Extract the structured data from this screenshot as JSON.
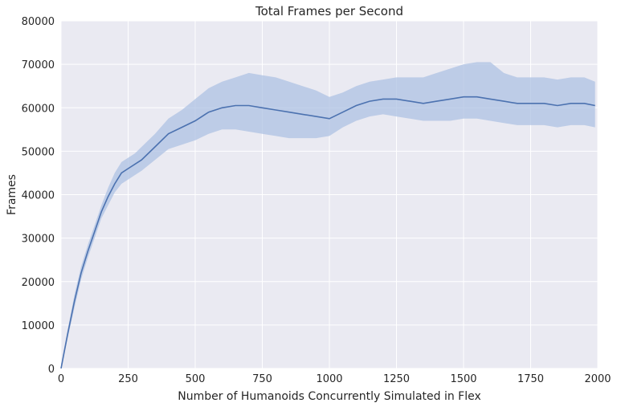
{
  "chart_data": {
    "type": "line",
    "title": "Total Frames per Second",
    "xlabel": "Number of Humanoids Concurrently Simulated in Flex",
    "ylabel": "Frames",
    "xlim": [
      0,
      2000
    ],
    "ylim": [
      0,
      80000
    ],
    "xticks": [
      0,
      250,
      500,
      750,
      1000,
      1250,
      1500,
      1750,
      2000
    ],
    "yticks": [
      0,
      10000,
      20000,
      30000,
      40000,
      50000,
      60000,
      70000,
      80000
    ],
    "grid": true,
    "legend": "none",
    "colors": {
      "background": "#eaeaf2",
      "grid": "#ffffff",
      "line": "#4c72b0",
      "band": "#aec1e3"
    },
    "series": [
      {
        "x": [
          0,
          25,
          50,
          75,
          100,
          125,
          150,
          175,
          200,
          225,
          250,
          275,
          300,
          350,
          400,
          450,
          500,
          550,
          600,
          650,
          700,
          750,
          800,
          850,
          900,
          950,
          1000,
          1050,
          1100,
          1150,
          1200,
          1250,
          1300,
          1350,
          1400,
          1450,
          1500,
          1550,
          1600,
          1650,
          1700,
          1750,
          1800,
          1850,
          1900,
          1950,
          1990
        ],
        "values": [
          0,
          8000,
          15500,
          22000,
          27000,
          31500,
          36000,
          39500,
          42500,
          45000,
          46000,
          47000,
          48000,
          51000,
          54000,
          55500,
          57000,
          59000,
          60000,
          60500,
          60500,
          60000,
          59500,
          59000,
          58500,
          58000,
          57500,
          59000,
          60500,
          61500,
          62000,
          62000,
          61500,
          61000,
          61500,
          62000,
          62500,
          62500,
          62000,
          61500,
          61000,
          61000,
          61000,
          60500,
          61000,
          61000,
          60500
        ],
        "lower": [
          0,
          7000,
          14000,
          20500,
          25500,
          30000,
          34500,
          37500,
          40500,
          42500,
          43500,
          44500,
          45500,
          48000,
          50500,
          51500,
          52500,
          54000,
          55000,
          55000,
          54500,
          54000,
          53500,
          53000,
          53000,
          53000,
          53500,
          55500,
          57000,
          58000,
          58500,
          58000,
          57500,
          57000,
          57000,
          57000,
          57500,
          57500,
          57000,
          56500,
          56000,
          56000,
          56000,
          55500,
          56000,
          56000,
          55500
        ],
        "upper": [
          1000,
          9000,
          17000,
          23500,
          28500,
          33000,
          37500,
          41500,
          45000,
          47500,
          48500,
          49500,
          51000,
          54000,
          57500,
          59500,
          62000,
          64500,
          66000,
          67000,
          68000,
          67500,
          67000,
          66000,
          65000,
          64000,
          62500,
          63500,
          65000,
          66000,
          66500,
          67000,
          67000,
          67000,
          68000,
          69000,
          70000,
          70500,
          70500,
          68000,
          67000,
          67000,
          67000,
          66500,
          67000,
          67000,
          66000
        ]
      }
    ]
  }
}
